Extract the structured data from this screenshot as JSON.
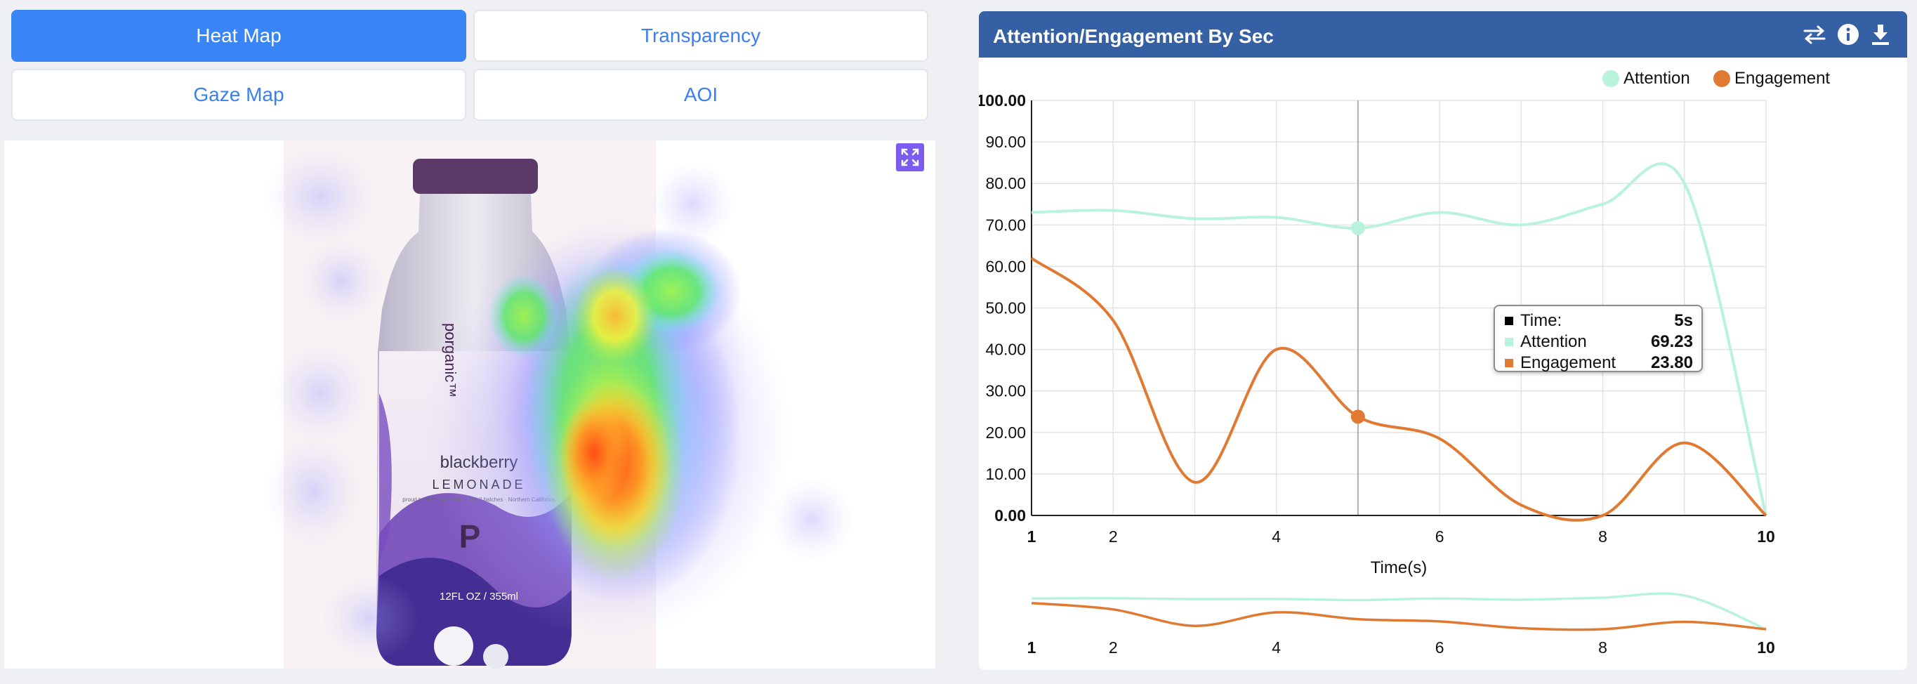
{
  "tabs": [
    {
      "label": "Heat Map",
      "active": true
    },
    {
      "label": "Transparency",
      "active": false
    },
    {
      "label": "Gaze Map",
      "active": false
    },
    {
      "label": "AOI",
      "active": false
    }
  ],
  "viewer": {
    "expand_icon": "expand-icon",
    "product": {
      "brand_letter": "P",
      "brand": "porganic™",
      "flavor": "blackberry",
      "type": "LEMONADE",
      "tagline": "proud to be hand crafted · small batches · Northern California",
      "volume": "12FL OZ / 355ml"
    }
  },
  "panel": {
    "title": "Attention/Engagement By Sec",
    "icons": [
      "swap-icon",
      "info-icon",
      "download-icon"
    ],
    "accent": "#3561a4"
  },
  "chart_data": {
    "type": "line",
    "xlabel": "Time(s)",
    "ylim": [
      0,
      100
    ],
    "xlim": [
      1,
      10
    ],
    "y_ticks": [
      "0.00",
      "10.00",
      "20.00",
      "30.00",
      "40.00",
      "50.00",
      "60.00",
      "70.00",
      "80.00",
      "90.00",
      "100.00"
    ],
    "x_ticks": [
      1,
      2,
      4,
      6,
      8,
      10
    ],
    "x_grid": [
      1,
      2,
      3,
      4,
      5,
      6,
      7,
      8,
      9,
      10
    ],
    "grid": true,
    "legend_position": "top-right",
    "series": [
      {
        "name": "Attention",
        "color": "#b9f3dc",
        "x": [
          1,
          2,
          3,
          4,
          5,
          6,
          7,
          8,
          9,
          10
        ],
        "values": [
          73,
          73.5,
          71.5,
          71.8,
          69.23,
          73,
          70,
          75,
          80,
          0
        ]
      },
      {
        "name": "Engagement",
        "color": "#e07a33",
        "x": [
          1,
          2,
          3,
          4,
          5,
          6,
          7,
          8,
          9,
          10
        ],
        "values": [
          62,
          47,
          8,
          40,
          23.8,
          18.5,
          2.5,
          0,
          17.5,
          0
        ]
      }
    ],
    "navigator": true,
    "hover": {
      "x": 5,
      "time_label": "Time:",
      "time_value": "5s",
      "rows": [
        {
          "name": "Attention",
          "value": "69.23",
          "color": "#b9f3dc"
        },
        {
          "name": "Engagement",
          "value": "23.80",
          "color": "#e07a33"
        }
      ]
    }
  }
}
